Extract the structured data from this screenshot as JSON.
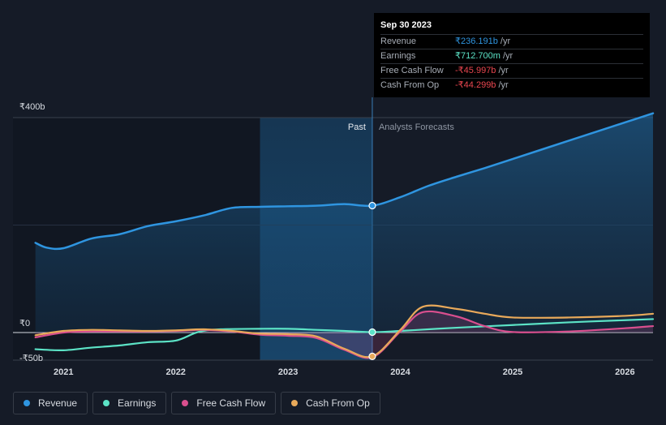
{
  "chart_data": {
    "type": "line",
    "title": "",
    "currency_symbol": "₹",
    "y_unit": "b",
    "ylim": [
      -50,
      400
    ],
    "y_ticks": [
      {
        "value": 400,
        "label": "₹400b"
      },
      {
        "value": 0,
        "label": "₹0"
      },
      {
        "value": -50,
        "label": "-₹50b"
      }
    ],
    "x_ticks": [
      {
        "value": 2021.0,
        "label": "2021"
      },
      {
        "value": 2022.0,
        "label": "2022"
      },
      {
        "value": 2023.0,
        "label": "2023"
      },
      {
        "value": 2024.0,
        "label": "2024"
      },
      {
        "value": 2025.0,
        "label": "2025"
      },
      {
        "value": 2026.0,
        "label": "2026"
      }
    ],
    "xlim": [
      2020.55,
      2026.25
    ],
    "divider_x": 2023.75,
    "past_shade_start": 2022.75,
    "past_label": "Past",
    "forecast_label": "Analysts Forecasts",
    "series": [
      {
        "name": "Revenue",
        "color": "#2f95e0",
        "x": [
          2020.75,
          2020.85,
          2021.0,
          2021.25,
          2021.5,
          2021.75,
          2022.0,
          2022.25,
          2022.5,
          2022.75,
          2023.0,
          2023.25,
          2023.5,
          2023.75,
          2024.0,
          2024.25,
          2024.5,
          2024.75,
          2025.0,
          2025.25,
          2025.5,
          2025.75,
          2026.0,
          2026.25
        ],
        "values": [
          167,
          158,
          157,
          175,
          183,
          198,
          207,
          218,
          232,
          234,
          235,
          236,
          239,
          236.19,
          252,
          273,
          290,
          306,
          323,
          340,
          357,
          374,
          391,
          408
        ]
      },
      {
        "name": "Earnings",
        "color": "#5ce3c6",
        "x": [
          2020.75,
          2021.0,
          2021.25,
          2021.5,
          2021.75,
          2022.0,
          2022.2,
          2022.4,
          2022.75,
          2023.0,
          2023.25,
          2023.5,
          2023.75,
          2024.0,
          2024.5,
          2025.0,
          2025.5,
          2026.0,
          2026.25
        ],
        "values": [
          -31,
          -33,
          -28,
          -24,
          -18,
          -15,
          1,
          6,
          7,
          7,
          5,
          3,
          0.71,
          3,
          9,
          14,
          19,
          23,
          25
        ]
      },
      {
        "name": "Free Cash Flow",
        "color": "#d94f8e",
        "x": [
          2020.75,
          2021.0,
          2021.25,
          2021.5,
          2021.75,
          2022.0,
          2022.25,
          2022.5,
          2022.75,
          2023.0,
          2023.25,
          2023.5,
          2023.75,
          2024.0,
          2024.2,
          2024.5,
          2024.75,
          2025.0,
          2025.5,
          2026.0,
          2026.25
        ],
        "values": [
          -9,
          0,
          2,
          2,
          2,
          3,
          5,
          2,
          -4,
          -6,
          -10,
          -32,
          -45.997,
          2,
          38,
          30,
          12,
          1,
          2,
          8,
          12
        ]
      },
      {
        "name": "Cash From Op",
        "color": "#e8a95a",
        "x": [
          2020.75,
          2021.0,
          2021.25,
          2021.5,
          2021.75,
          2022.0,
          2022.25,
          2022.5,
          2022.75,
          2023.0,
          2023.25,
          2023.5,
          2023.75,
          2024.0,
          2024.2,
          2024.5,
          2024.75,
          2025.0,
          2025.5,
          2026.0,
          2026.25
        ],
        "values": [
          -5,
          3,
          5,
          4,
          3,
          4,
          6,
          3,
          -2,
          -3,
          -7,
          -30,
          -44.299,
          5,
          48,
          44,
          35,
          28,
          28,
          31,
          35
        ]
      }
    ],
    "highlight_points": [
      {
        "series": "Revenue",
        "x": 2023.75,
        "value": 236.191
      },
      {
        "series": "Earnings",
        "x": 2023.75,
        "value": 0.713
      },
      {
        "series": "Cash From Op",
        "x": 2023.75,
        "value": -44.299
      }
    ],
    "tooltip": {
      "date": "Sep 30 2023",
      "rows": [
        {
          "label": "Revenue",
          "value": "₹236.191b",
          "unit": "/yr",
          "color": "#2f95e0"
        },
        {
          "label": "Earnings",
          "value": "₹712.700m",
          "unit": "/yr",
          "color": "#5ce3c6"
        },
        {
          "label": "Free Cash Flow",
          "value": "-₹45.997b",
          "unit": "/yr",
          "color": "#e8464f"
        },
        {
          "label": "Cash From Op",
          "value": "-₹44.299b",
          "unit": "/yr",
          "color": "#e8464f"
        }
      ]
    }
  },
  "legend": [
    {
      "label": "Revenue",
      "color": "#2f95e0"
    },
    {
      "label": "Earnings",
      "color": "#5ce3c6"
    },
    {
      "label": "Free Cash Flow",
      "color": "#d94f8e"
    },
    {
      "label": "Cash From Op",
      "color": "#e8a95a"
    }
  ]
}
